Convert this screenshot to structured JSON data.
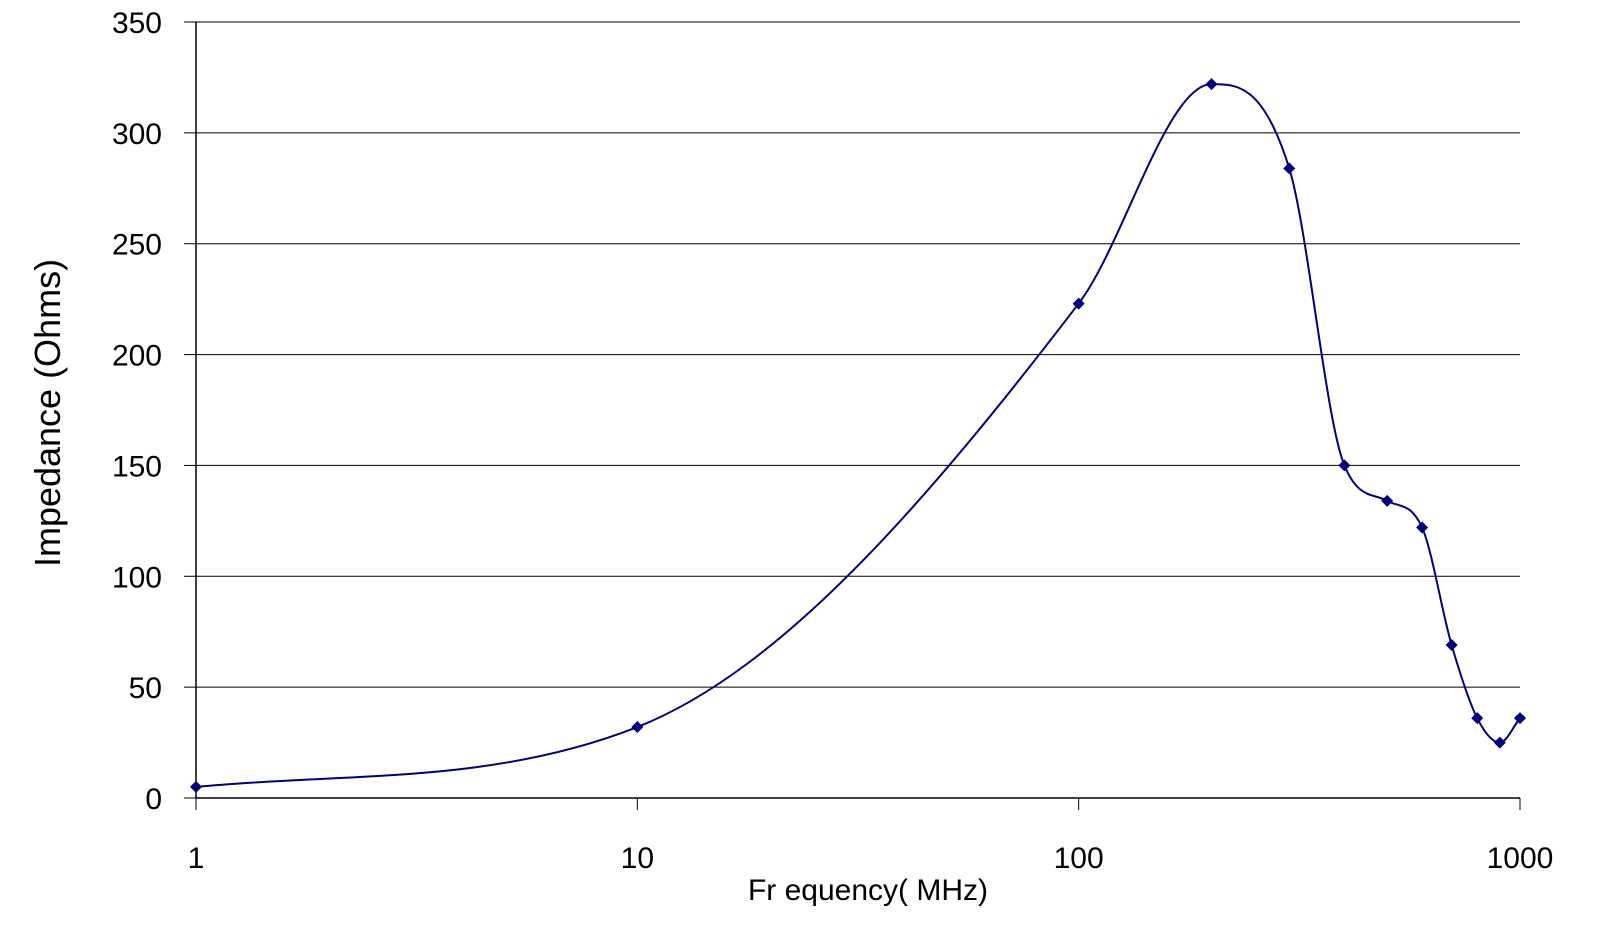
{
  "chart_data": {
    "type": "line",
    "title": "",
    "xlabel": "Fr equency( MHz)",
    "ylabel": "Impedance (Ohms)",
    "x_scale": "log",
    "xlim": [
      1,
      1000
    ],
    "ylim": [
      0,
      350
    ],
    "grid": "horizontal",
    "legend": "none",
    "x_ticks": [
      1,
      10,
      100,
      1000
    ],
    "x_tick_labels": [
      "1",
      "10",
      "100",
      "1000"
    ],
    "y_ticks": [
      0,
      50,
      100,
      150,
      200,
      250,
      300,
      350
    ],
    "y_tick_labels": [
      "0",
      "50",
      "100",
      "150",
      "200",
      "250",
      "300",
      "350"
    ],
    "series": [
      {
        "color": "#000080",
        "x": [
          1,
          10,
          100,
          200,
          300,
          400,
          500,
          600,
          700,
          800,
          900,
          1000
        ],
        "y": [
          5,
          32,
          223,
          322,
          284,
          150,
          134,
          122,
          69,
          36,
          25,
          36
        ]
      }
    ]
  }
}
